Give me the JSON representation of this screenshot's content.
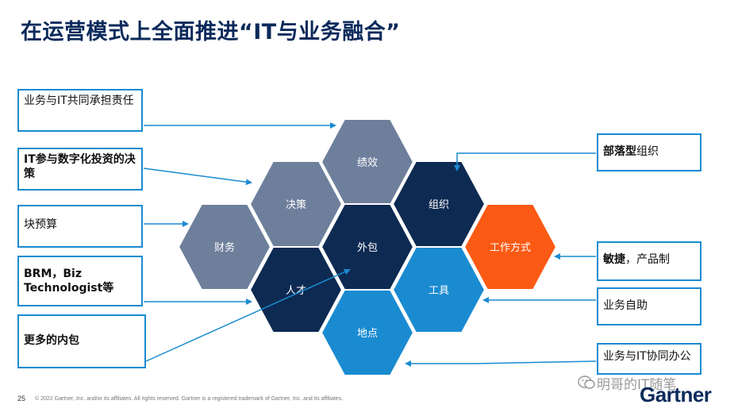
{
  "title": "在运营模式上全面推进“IT与业务融合”",
  "left_boxes": [
    {
      "text": "业务与IT共同承担责任",
      "bold": false
    },
    {
      "text_bold": "IT参与数字化投资的决策",
      "bold": true
    },
    {
      "text": "块预算",
      "bold": false
    },
    {
      "text_bold": "BRM，Biz Technologist等",
      "bold": true
    },
    {
      "text_bold": "更多的内包",
      "bold": true
    }
  ],
  "right_boxes": [
    {
      "text_bold": "部落型",
      "text": "组织"
    },
    {
      "text_bold": "敏捷",
      "text": "，产品制"
    },
    {
      "text": "业务自助"
    },
    {
      "text": "业务与IT协同办公"
    }
  ],
  "hexagons": [
    {
      "label": "绩效",
      "color": "#6e7f9c"
    },
    {
      "label": "决策",
      "color": "#6e7f9c"
    },
    {
      "label": "组织",
      "color": "#0d2a52"
    },
    {
      "label": "财务",
      "color": "#6e7f9c"
    },
    {
      "label": "外包",
      "color": "#0d2a52"
    },
    {
      "label": "工作方式",
      "color": "#fa5a14"
    },
    {
      "label": "人才",
      "color": "#0d2a52"
    },
    {
      "label": "工具",
      "color": "#1a8bd0"
    },
    {
      "label": "地点",
      "color": "#1a8bd0"
    }
  ],
  "footer": {
    "page_number": "25",
    "copyright": "© 2022 Gartner, Inc. and/or its affiliates. All rights reserved. Gartner is a registered trademark of Gartner, Inc. and its affiliates."
  },
  "watermark": "明哥的IT随笔",
  "logo": "Gartner",
  "colors": {
    "accent_blue": "#1a8bd0",
    "navy": "#0d2a52",
    "slate": "#6e7f9c",
    "orange": "#fa5a14"
  }
}
